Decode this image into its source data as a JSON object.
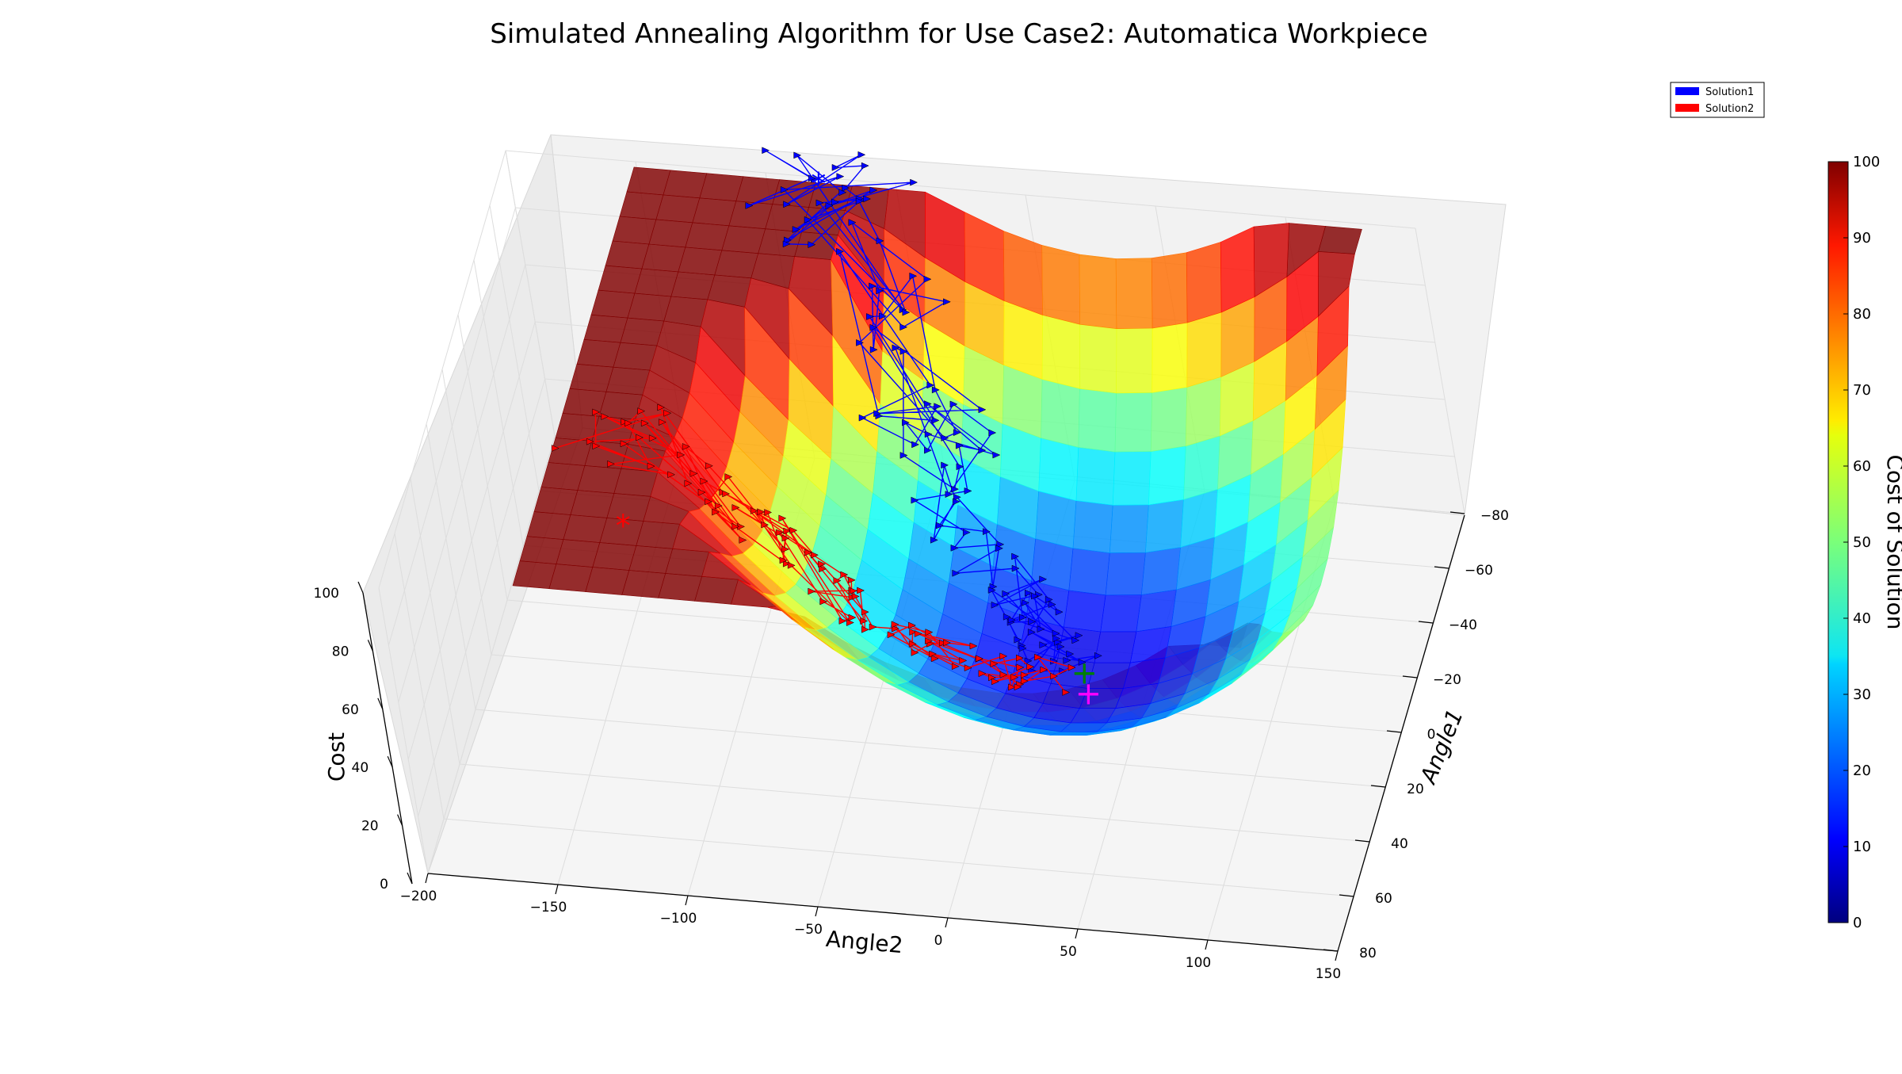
{
  "chart_data": {
    "type": "surface3d",
    "title": "Simulated Annealing Algorithm for Use Case2: Automatica Workpiece",
    "xlabel": "Angle2",
    "ylabel": "Angle1",
    "zlabel": "Cost",
    "x_ticks": [
      "−200",
      "−150",
      "−100",
      "−50",
      "0",
      "50",
      "100",
      "150"
    ],
    "y_ticks": [
      "−80",
      "−60",
      "−40",
      "−20",
      "0",
      "20",
      "40",
      "60",
      "80"
    ],
    "z_ticks": [
      "0",
      "20",
      "40",
      "60",
      "80",
      "100"
    ],
    "xlim": [
      -200,
      150
    ],
    "ylim": [
      -80,
      80
    ],
    "zlim": [
      0,
      100
    ],
    "colorbar": {
      "label": "Cost of Solution",
      "ticks": [
        "0",
        "10",
        "20",
        "30",
        "40",
        "50",
        "60",
        "70",
        "80",
        "90",
        "100"
      ],
      "range": [
        0,
        100
      ],
      "colormap": "jet"
    },
    "legend": {
      "placement": "top-right",
      "entries": [
        {
          "name": "Solution1",
          "color": "#0000ff"
        },
        {
          "name": "Solution2",
          "color": "#ff0000"
        }
      ]
    },
    "series": [
      {
        "name": "Solution1",
        "color": "#0000ff",
        "start_marker": "*",
        "start": {
          "angle2": -80,
          "angle1": -80,
          "cost": 98
        }
      },
      {
        "name": "Solution2",
        "color": "#ff0000",
        "start_marker": "*",
        "start": {
          "angle2": -130,
          "angle1": 20,
          "cost": 70
        }
      }
    ],
    "optimum_markers": [
      {
        "marker": "+",
        "color": "#008000",
        "angle2": 30,
        "angle1": 0,
        "cost": 10
      },
      {
        "marker": "+",
        "color": "#ff00ff",
        "angle2": 30,
        "angle1": 2,
        "cost": 8
      }
    ]
  }
}
